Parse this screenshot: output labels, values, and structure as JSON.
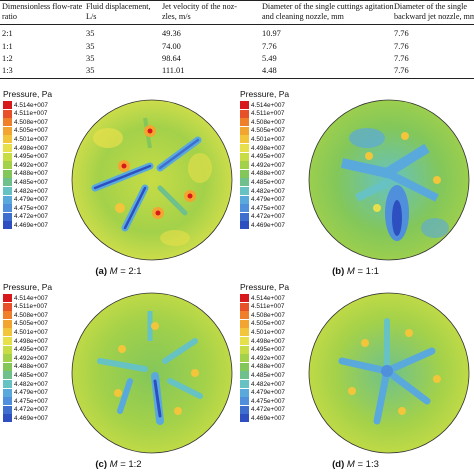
{
  "table": {
    "headers": [
      [
        "Dimensionless flow-rate",
        "ratio"
      ],
      [
        "Fluid displacement,",
        "L/s"
      ],
      [
        "Jet velocity of the noz-",
        "zles, m/s"
      ],
      [
        "Diameter of the single cuttings agitation",
        "and cleaning nozzle, mm"
      ],
      [
        "Diameter of the single",
        "backward jet nozzle, mm"
      ]
    ],
    "rows": [
      [
        "2:1",
        "35",
        "49.36",
        "10.97",
        "7.76"
      ],
      [
        "1:1",
        "35",
        "74.00",
        "7.76",
        "7.76"
      ],
      [
        "1:2",
        "35",
        "98.64",
        "5.49",
        "7.76"
      ],
      [
        "1:3",
        "35",
        "111.01",
        "4.48",
        "7.76"
      ]
    ]
  },
  "legend": {
    "title": "Pressure, Pa",
    "levels": [
      "4.514e+007",
      "4.511e+007",
      "4.508e+007",
      "4.505e+007",
      "4.501e+007",
      "4.498e+007",
      "4.495e+007",
      "4.492e+007",
      "4.488e+007",
      "4.485e+007",
      "4.482e+007",
      "4.479e+007",
      "4.475e+007",
      "4.472e+007",
      "4.469e+007"
    ],
    "colors": [
      "#d7191c",
      "#e8502a",
      "#f07f2a",
      "#f3a531",
      "#f2c53b",
      "#e8e04a",
      "#c7dc45",
      "#a3d14a",
      "#83c75a",
      "#6ec18c",
      "#66c2c3",
      "#5aa9dc",
      "#4f8fdb",
      "#3e6fcf",
      "#2d4fbf"
    ]
  },
  "panels": [
    {
      "label": "(a)",
      "var": "M",
      "value": " = 2:1"
    },
    {
      "label": "(b)",
      "var": "M",
      "value": " = 1:1"
    },
    {
      "label": "(c)",
      "var": "M",
      "value": " = 1:2"
    },
    {
      "label": "(d)",
      "var": "M",
      "value": " = 1:3"
    }
  ]
}
